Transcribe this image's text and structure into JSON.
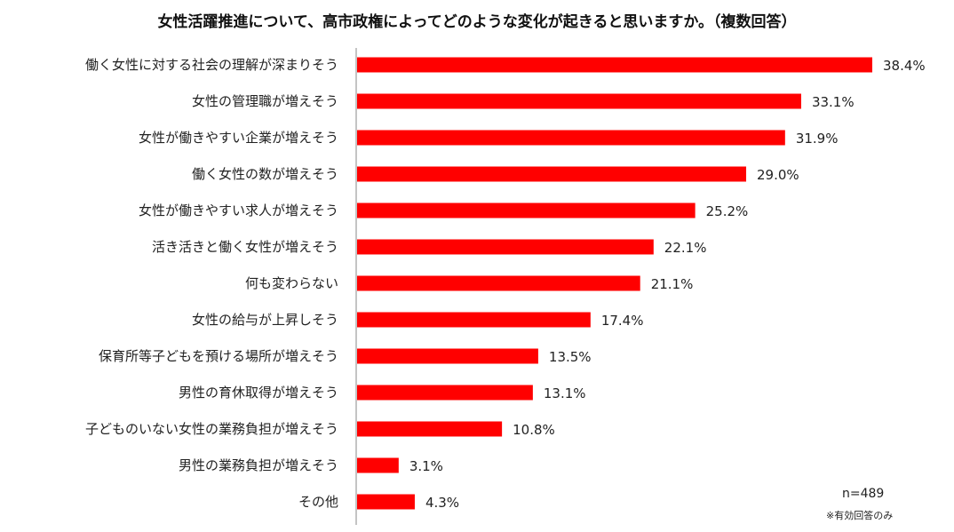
{
  "chart_data": {
    "type": "bar",
    "orientation": "horizontal",
    "title": "女性活躍推進について、高市政権によってどのような変化が起きると思いますか。（複数回答）",
    "categories": [
      "働く女性に対する社会の理解が深まりそう",
      "女性の管理職が増えそう",
      "女性が働きやすい企業が増えそう",
      "働く女性の数が増えそう",
      "女性が働きやすい求人が増えそう",
      "活き活きと働く女性が増えそう",
      "何も変わらない",
      "女性の給与が上昇しそう",
      "保育所等子どもを預ける場所が増えそう",
      "男性の育休取得が増えそう",
      "子どものいない女性の業務負担が増えそう",
      "男性の業務負担が増えそう",
      "その他"
    ],
    "values": [
      38.4,
      33.1,
      31.9,
      29.0,
      25.2,
      22.1,
      21.1,
      17.4,
      13.5,
      13.1,
      10.8,
      3.1,
      4.3
    ],
    "value_labels": [
      "38.4%",
      "33.1%",
      "31.9%",
      "29.0%",
      "25.2%",
      "22.1%",
      "21.1%",
      "17.4%",
      "13.5%",
      "13.1%",
      "10.8%",
      "3.1%",
      "4.3%"
    ],
    "unit": "%",
    "bar_color": "#ff0000",
    "axis_color": "#888888",
    "grid": false,
    "legend": "none"
  },
  "note": {
    "sample_size": "n=489",
    "footnote": "※有効回答のみ"
  }
}
